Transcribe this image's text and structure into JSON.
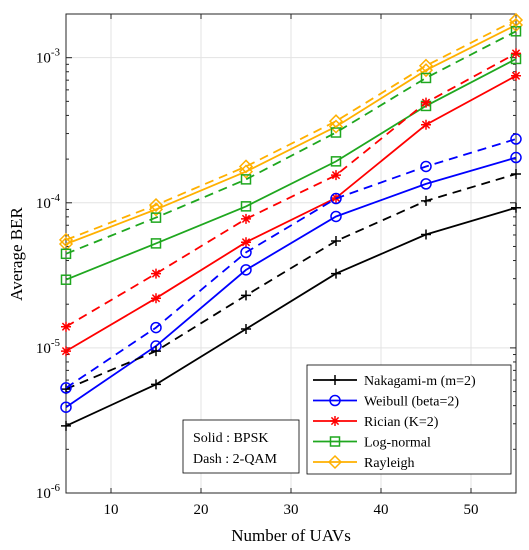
{
  "chart_data": {
    "type": "line",
    "xlabel": "Number of UAVs",
    "ylabel": "Average BER",
    "y_scale": "log",
    "xlim": [
      5,
      55
    ],
    "ylim": [
      1e-06,
      0.002
    ],
    "x_ticks": [
      10,
      20,
      30,
      40,
      50
    ],
    "x_tick_labels": [
      "10",
      "20",
      "30",
      "40",
      "50"
    ],
    "y_ticks": [
      1e-06,
      1e-05,
      0.0001,
      0.001
    ],
    "y_tick_labels": [
      {
        "base": "10",
        "exp": "-6"
      },
      {
        "base": "10",
        "exp": "-5"
      },
      {
        "base": "10",
        "exp": "-4"
      },
      {
        "base": "10",
        "exp": "-3"
      }
    ],
    "grid": true,
    "legend_position": "bottom-right",
    "x": [
      5,
      15,
      25,
      35,
      45,
      55
    ],
    "series": [
      {
        "name": "Nakagami-m (m=2)",
        "color": "#000000",
        "marker": "plus",
        "linestyle": "solid",
        "values": [
          2.9e-06,
          5.6e-06,
          1.35e-05,
          3.25e-05,
          6.05e-05,
          9.25e-05
        ]
      },
      {
        "name": "Weibull (beta=2)",
        "color": "#0000FF",
        "marker": "circle",
        "linestyle": "solid",
        "values": [
          3.9e-06,
          1.03e-05,
          3.45e-05,
          8.05e-05,
          0.000135,
          0.000205
        ]
      },
      {
        "name": "Rician (K=2)",
        "color": "#FF0000",
        "marker": "asterisk",
        "linestyle": "solid",
        "values": [
          9.5e-06,
          2.2e-05,
          5.35e-05,
          0.000108,
          0.000345,
          0.00075
        ]
      },
      {
        "name": "Log-normal",
        "color": "#1FA71F",
        "marker": "square",
        "linestyle": "solid",
        "values": [
          2.95e-05,
          5.25e-05,
          9.45e-05,
          0.000193,
          0.000465,
          0.00098
        ]
      },
      {
        "name": "Rayleigh",
        "color": "#FFB000",
        "marker": "diamond",
        "linestyle": "solid",
        "values": [
          5.2e-05,
          9e-05,
          0.000164,
          0.000335,
          0.00082,
          0.00168
        ]
      },
      {
        "name": "",
        "color": "#000000",
        "marker": "plus",
        "linestyle": "dashed",
        "values": [
          5.2e-06,
          9.5e-06,
          2.3e-05,
          5.45e-05,
          0.000103,
          0.000158
        ]
      },
      {
        "name": "",
        "color": "#0000FF",
        "marker": "circle",
        "linestyle": "dashed",
        "values": [
          5.3e-06,
          1.38e-05,
          4.55e-05,
          0.000107,
          0.000178,
          0.000275
        ]
      },
      {
        "name": "",
        "color": "#FF0000",
        "marker": "asterisk",
        "linestyle": "dashed",
        "values": [
          1.4e-05,
          3.25e-05,
          7.75e-05,
          0.000155,
          0.00049,
          0.00107
        ]
      },
      {
        "name": "",
        "color": "#1FA71F",
        "marker": "square",
        "linestyle": "dashed",
        "values": [
          4.45e-05,
          7.9e-05,
          0.000145,
          0.000305,
          0.000725,
          0.00152
        ]
      },
      {
        "name": "",
        "color": "#FFB000",
        "marker": "diamond",
        "linestyle": "dashed",
        "values": [
          5.55e-05,
          9.65e-05,
          0.000178,
          0.000365,
          0.00088,
          0.00182
        ]
      }
    ],
    "annotation": {
      "line1": "Solid : BPSK",
      "line2": "Dash : 2-QAM"
    }
  }
}
